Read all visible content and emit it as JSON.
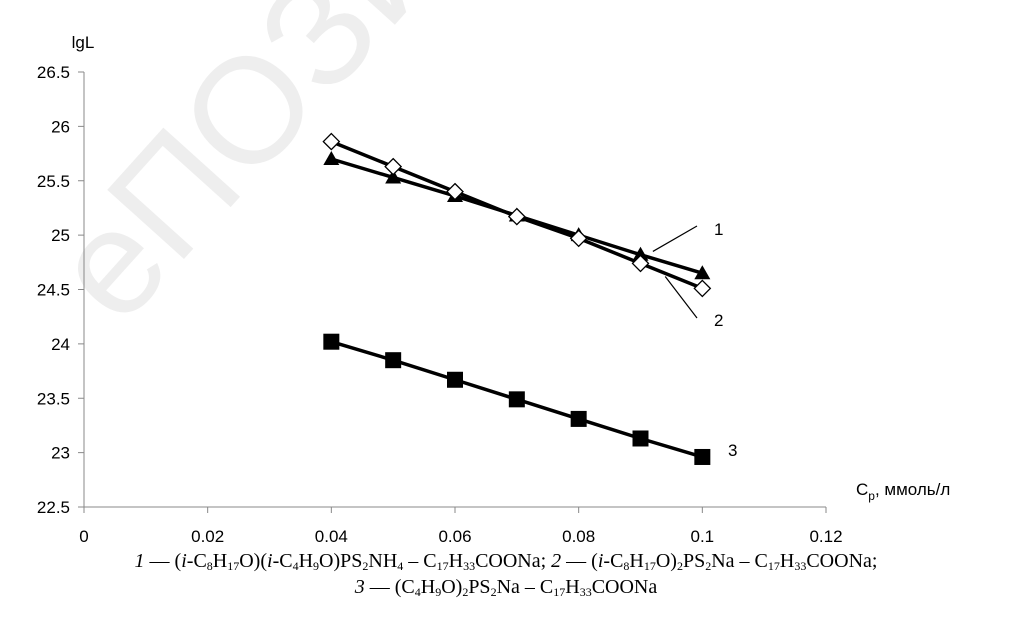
{
  "chart_data": {
    "type": "line",
    "ylabel": "lgL",
    "xlabel": "C",
    "xlabel_sub": "р",
    "xlabel_unit": ", ммоль/л",
    "xlim": [
      0,
      0.12
    ],
    "ylim": [
      22.5,
      26.5
    ],
    "x_ticks": [
      "0",
      "0.02",
      "0.04",
      "0.06",
      "0.08",
      "0.1",
      "0.12"
    ],
    "y_ticks": [
      "22.5",
      "23",
      "23.5",
      "24",
      "24.5",
      "25",
      "25.5",
      "26",
      "26.5"
    ],
    "grid": false,
    "x": [
      0.04,
      0.05,
      0.06,
      0.07,
      0.08,
      0.09,
      0.1
    ],
    "series": [
      {
        "name": "1",
        "marker": "triangle",
        "values": [
          25.7,
          25.53,
          25.36,
          25.18,
          25.0,
          24.82,
          24.65
        ]
      },
      {
        "name": "2",
        "marker": "diamond",
        "values": [
          25.86,
          25.63,
          25.4,
          25.17,
          24.97,
          24.74,
          24.51
        ]
      },
      {
        "name": "3",
        "marker": "square",
        "values": [
          24.02,
          23.85,
          23.67,
          23.49,
          23.31,
          23.13,
          22.96
        ]
      }
    ]
  },
  "caption": {
    "line1": {
      "n1": "1",
      "t1a": " — (",
      "i1": "i",
      "t1b": "-C",
      "s1": "8",
      "t1c": "H",
      "s2": "17",
      "t1d": "O)(",
      "i2": "i",
      "t1e": "-C",
      "s3": "4",
      "t1f": "H",
      "s4": "9",
      "t1g": "O)PS",
      "s5": "2",
      "t1h": "NH",
      "s6": "4",
      "t1i": " – C",
      "s7": "17",
      "t1j": "H",
      "s8": "33",
      "t1k": "COONa; ",
      "n2": "2",
      "t2a": " — (",
      "i3": "i",
      "t2b": "-C",
      "s9": "8",
      "t2c": "H",
      "s10": "17",
      "t2d": "O)",
      "s11": "2",
      "t2e": "PS",
      "s12": "2",
      "t2f": "Na – C",
      "s13": "17",
      "t2g": "H",
      "s14": "33",
      "t2h": "COONa;"
    },
    "line2": {
      "n3": "3",
      "t3a": " — (C",
      "s1": "4",
      "t3b": "H",
      "s2": "9",
      "t3c": "O)",
      "s3": "2",
      "t3d": "PS",
      "s4": "2",
      "t3e": "Na – C",
      "s5": "17",
      "t3f": "H",
      "s6": "33",
      "t3g": "COONa"
    }
  },
  "colors": {
    "line": "#000000",
    "watermark": "#e0e0e0"
  }
}
